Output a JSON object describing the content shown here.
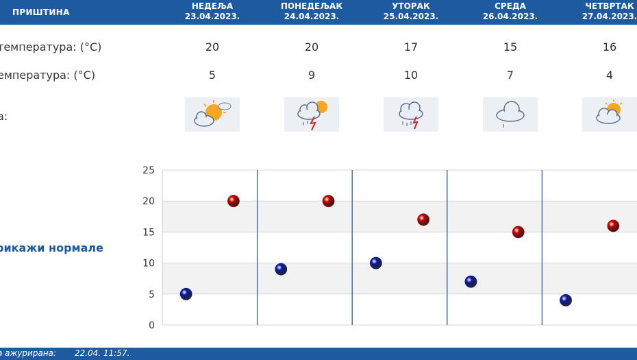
{
  "header": {
    "city": "ПРИШТИНА"
  },
  "days": [
    {
      "name": "НЕДЕЉА",
      "date": "23.04.2023.",
      "max": "20",
      "min": "5",
      "icon": "sun-behind-cloud-icon"
    },
    {
      "name": "ПОНЕДЕЉАК",
      "date": "24.04.2023.",
      "max": "20",
      "min": "9",
      "icon": "thunderstorm-sun-icon"
    },
    {
      "name": "УТОРАК",
      "date": "25.04.2023.",
      "max": "17",
      "min": "10",
      "icon": "thunderstorm-rain-icon"
    },
    {
      "name": "СРЕДА",
      "date": "26.04.2023.",
      "max": "15",
      "min": "7",
      "icon": "cloud-rain-icon"
    },
    {
      "name": "ЧЕТВРТАК",
      "date": "27.04.2023.",
      "max": "16",
      "min": "4",
      "icon": "partly-cloudy-icon"
    }
  ],
  "rows": {
    "max_label": "температура: (°C)",
    "min_label": "емпература: (°C)",
    "weather_label": "а:"
  },
  "toggle_label": "рикажи нормале",
  "chart_data": {
    "type": "scatter",
    "categories": [
      "23.04.2023.",
      "24.04.2023.",
      "25.04.2023.",
      "26.04.2023.",
      "27.04.2023."
    ],
    "series": [
      {
        "values": [
          20,
          20,
          17,
          15,
          16
        ],
        "color": "#cc0000"
      },
      {
        "values": [
          5,
          9,
          10,
          7,
          4
        ],
        "color": "#0a1aa8"
      }
    ],
    "ylim": [
      0,
      25
    ],
    "yticks": [
      "0",
      "5",
      "10",
      "15",
      "20",
      "25"
    ],
    "grid": true
  },
  "footer": {
    "label": "а ажурирана:",
    "value": "22.04. 11:57."
  }
}
